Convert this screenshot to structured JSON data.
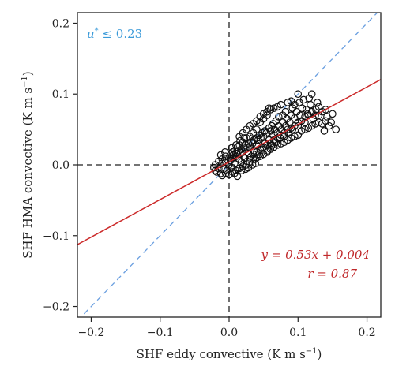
{
  "chart_data": {
    "type": "scatter",
    "xlabel": "SHF eddy convective (K m s",
    "xlabel_exp": "−1",
    "xlabel_close": ")",
    "ylabel": "SHF HMA convective (K m s",
    "ylabel_exp": "−1",
    "ylabel_close": ")",
    "xlim": [
      -0.22,
      0.22
    ],
    "ylim": [
      -0.215,
      0.215
    ],
    "xticks": [
      -0.2,
      -0.1,
      0.0,
      0.1,
      0.2
    ],
    "xtick_labels": [
      "−0.2",
      "−0.1",
      "0.0",
      "0.1",
      "0.2"
    ],
    "yticks": [
      -0.2,
      -0.1,
      0.0,
      0.1,
      0.2
    ],
    "ytick_labels": [
      "−0.2",
      "−0.1",
      "0.0",
      "0.1",
      "0.2"
    ],
    "grid": false,
    "reference_lines": [
      {
        "kind": "vertical",
        "x": 0,
        "style": "dashed",
        "color": "#222222"
      },
      {
        "kind": "horizontal",
        "y": 0,
        "style": "dashed",
        "color": "#222222"
      },
      {
        "kind": "one-to-one",
        "slope": 1,
        "intercept": 0,
        "style": "dashed",
        "color": "#6a9fe0"
      }
    ],
    "fit_line": {
      "slope": 0.53,
      "intercept": 0.004,
      "color": "#cc2a2a"
    },
    "annotations": {
      "ustar_symbol": "u",
      "ustar_sup": "*",
      "ustar_text": " ≤ 0.23",
      "ustar_color": "#3a9ad9",
      "equation_text": "y = 0.53x + 0.004",
      "r_text": "r = 0.87",
      "equation_color": "#c0282a"
    },
    "marker_color": "#111111",
    "series": [
      {
        "points": [
          [
            -0.02,
            -0.008
          ],
          [
            -0.018,
            -0.01
          ],
          [
            -0.015,
            -0.005
          ],
          [
            -0.012,
            -0.012
          ],
          [
            -0.01,
            0.002
          ],
          [
            -0.008,
            -0.006
          ],
          [
            -0.005,
            0.004
          ],
          [
            -0.003,
            -0.008
          ],
          [
            0.0,
            0.0
          ],
          [
            0.002,
            0.006
          ],
          [
            0.004,
            -0.004
          ],
          [
            0.006,
            0.01
          ],
          [
            0.008,
            0.002
          ],
          [
            0.01,
            0.012
          ],
          [
            0.012,
            -0.006
          ],
          [
            0.014,
            0.008
          ],
          [
            0.016,
            0.015
          ],
          [
            0.018,
            0.004
          ],
          [
            0.02,
            0.018
          ],
          [
            0.022,
            0.01
          ],
          [
            0.024,
            0.022
          ],
          [
            0.026,
            0.005
          ],
          [
            0.028,
            0.016
          ],
          [
            0.03,
            0.025
          ],
          [
            0.032,
            0.012
          ],
          [
            0.034,
            0.03
          ],
          [
            0.036,
            0.02
          ],
          [
            0.038,
            0.008
          ],
          [
            0.04,
            0.028
          ],
          [
            0.042,
            0.035
          ],
          [
            0.044,
            0.015
          ],
          [
            0.046,
            0.038
          ],
          [
            0.048,
            0.024
          ],
          [
            0.05,
            0.04
          ],
          [
            0.052,
            0.03
          ],
          [
            0.054,
            0.045
          ],
          [
            0.056,
            0.02
          ],
          [
            0.058,
            0.035
          ],
          [
            0.06,
            0.048
          ],
          [
            0.062,
            0.028
          ],
          [
            0.064,
            0.042
          ],
          [
            0.066,
            0.05
          ],
          [
            0.068,
            0.032
          ],
          [
            0.07,
            0.045
          ],
          [
            0.072,
            0.055
          ],
          [
            0.074,
            0.038
          ],
          [
            0.076,
            0.05
          ],
          [
            0.078,
            0.06
          ],
          [
            0.08,
            0.04
          ],
          [
            0.082,
            0.055
          ],
          [
            0.084,
            0.065
          ],
          [
            0.086,
            0.045
          ],
          [
            0.088,
            0.06
          ],
          [
            0.09,
            0.07
          ],
          [
            0.092,
            0.05
          ],
          [
            0.095,
            0.066
          ],
          [
            0.098,
            0.075
          ],
          [
            0.1,
            0.055
          ],
          [
            0.103,
            0.07
          ],
          [
            0.106,
            0.08
          ],
          [
            0.11,
            0.06
          ],
          [
            0.114,
            0.072
          ],
          [
            0.118,
            0.085
          ],
          [
            0.122,
            0.065
          ],
          [
            0.126,
            0.078
          ],
          [
            0.13,
            0.07
          ],
          [
            0.135,
            0.058
          ],
          [
            0.14,
            0.062
          ],
          [
            0.145,
            0.055
          ],
          [
            0.15,
            0.072
          ],
          [
            0.155,
            0.05
          ],
          [
            0.12,
            0.1
          ],
          [
            0.108,
            0.092
          ],
          [
            0.1,
            0.1
          ],
          [
            0.095,
            0.085
          ],
          [
            0.085,
            0.088
          ],
          [
            0.09,
            0.09
          ],
          [
            0.112,
            0.078
          ],
          [
            0.06,
            0.078
          ],
          [
            0.058,
            0.08
          ],
          [
            0.055,
            0.07
          ],
          [
            0.05,
            0.065
          ],
          [
            0.045,
            0.06
          ],
          [
            0.04,
            0.05
          ],
          [
            0.035,
            0.045
          ],
          [
            0.03,
            0.04
          ],
          [
            0.025,
            0.038
          ],
          [
            0.02,
            0.032
          ],
          [
            0.015,
            0.028
          ],
          [
            0.012,
            0.025
          ],
          [
            0.008,
            0.02
          ],
          [
            0.005,
            0.018
          ],
          [
            0.003,
            0.015
          ],
          [
            0.0,
            0.01
          ],
          [
            -0.005,
            0.012
          ],
          [
            -0.01,
            0.008
          ],
          [
            -0.015,
            0.005
          ],
          [
            -0.02,
            0.0
          ],
          [
            -0.022,
            -0.004
          ],
          [
            -0.01,
            -0.015
          ],
          [
            -0.005,
            -0.012
          ],
          [
            0.0,
            -0.014
          ],
          [
            0.005,
            -0.01
          ],
          [
            0.01,
            -0.008
          ],
          [
            0.015,
            -0.005
          ],
          [
            0.02,
            -0.002
          ],
          [
            0.025,
            0.0
          ],
          [
            0.03,
            0.004
          ],
          [
            0.035,
            0.008
          ],
          [
            0.04,
            0.01
          ],
          [
            0.045,
            0.012
          ],
          [
            0.05,
            0.015
          ],
          [
            0.055,
            0.018
          ],
          [
            0.06,
            0.022
          ],
          [
            0.065,
            0.025
          ],
          [
            0.07,
            0.028
          ],
          [
            0.075,
            0.03
          ],
          [
            0.08,
            0.032
          ],
          [
            0.085,
            0.035
          ],
          [
            0.09,
            0.038
          ],
          [
            0.095,
            0.04
          ],
          [
            0.1,
            0.042
          ],
          [
            0.105,
            0.048
          ],
          [
            0.11,
            0.05
          ],
          [
            0.115,
            0.052
          ],
          [
            0.12,
            0.055
          ],
          [
            0.125,
            0.058
          ],
          [
            0.13,
            0.06
          ],
          [
            0.138,
            0.048
          ],
          [
            0.142,
            0.068
          ],
          [
            0.148,
            0.06
          ],
          [
            0.128,
            0.088
          ],
          [
            0.116,
            0.094
          ],
          [
            0.102,
            0.088
          ],
          [
            0.092,
            0.08
          ],
          [
            0.082,
            0.075
          ],
          [
            0.078,
            0.07
          ],
          [
            0.072,
            0.068
          ],
          [
            0.068,
            0.062
          ],
          [
            0.064,
            0.058
          ],
          [
            0.062,
            0.055
          ],
          [
            0.058,
            0.052
          ],
          [
            0.052,
            0.048
          ],
          [
            0.048,
            0.045
          ],
          [
            0.044,
            0.042
          ],
          [
            0.04,
            0.038
          ],
          [
            0.036,
            0.035
          ],
          [
            0.032,
            0.032
          ],
          [
            0.028,
            0.03
          ],
          [
            0.024,
            0.028
          ],
          [
            0.022,
            0.025
          ],
          [
            0.018,
            0.022
          ],
          [
            0.014,
            0.02
          ],
          [
            0.01,
            0.016
          ],
          [
            0.006,
            0.014
          ],
          [
            0.002,
            0.01
          ],
          [
            0.015,
            0.04
          ],
          [
            0.02,
            0.045
          ],
          [
            0.025,
            0.05
          ],
          [
            0.03,
            0.055
          ],
          [
            0.035,
            0.058
          ],
          [
            0.04,
            0.062
          ],
          [
            0.045,
            0.068
          ],
          [
            0.05,
            0.072
          ],
          [
            0.055,
            0.075
          ],
          [
            0.065,
            0.08
          ],
          [
            0.07,
            0.082
          ],
          [
            0.075,
            0.085
          ],
          [
            0.03,
            0.01
          ],
          [
            0.035,
            0.015
          ],
          [
            0.04,
            0.018
          ],
          [
            0.045,
            0.022
          ],
          [
            0.05,
            0.025
          ],
          [
            0.055,
            0.028
          ],
          [
            0.06,
            0.03
          ],
          [
            0.065,
            0.035
          ],
          [
            0.07,
            0.038
          ],
          [
            0.075,
            0.042
          ],
          [
            0.08,
            0.045
          ],
          [
            0.085,
            0.05
          ],
          [
            0.09,
            0.052
          ],
          [
            0.095,
            0.055
          ],
          [
            0.1,
            0.06
          ],
          [
            0.105,
            0.062
          ],
          [
            0.11,
            0.068
          ],
          [
            0.115,
            0.07
          ],
          [
            0.12,
            0.075
          ],
          [
            0.125,
            0.07
          ],
          [
            0.13,
            0.082
          ],
          [
            0.135,
            0.075
          ],
          [
            0.14,
            0.078
          ],
          [
            0.008,
            -0.012
          ],
          [
            0.012,
            -0.016
          ],
          [
            0.018,
            -0.008
          ],
          [
            0.024,
            -0.006
          ],
          [
            0.028,
            -0.004
          ],
          [
            0.034,
            0.0
          ],
          [
            0.038,
            0.002
          ],
          [
            -0.012,
            0.014
          ],
          [
            -0.006,
            0.018
          ],
          [
            0.004,
            0.024
          ],
          [
            0.01,
            0.028
          ],
          [
            0.016,
            0.034
          ],
          [
            0.022,
            0.038
          ]
        ]
      }
    ]
  }
}
